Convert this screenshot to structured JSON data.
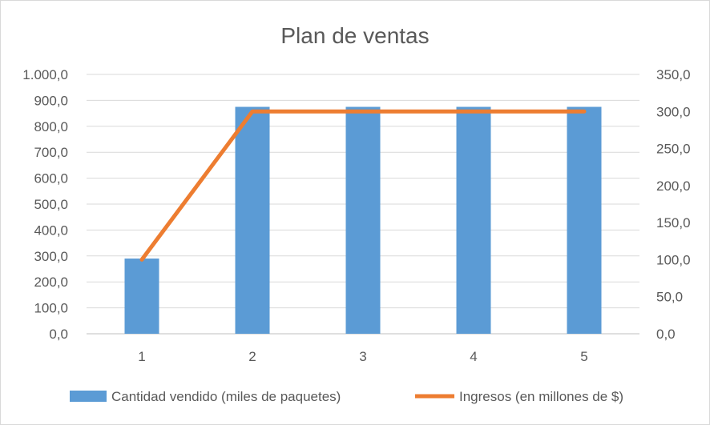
{
  "chart_data": {
    "type": "bar",
    "title": "Plan de ventas",
    "xlabel": "",
    "ylabel": "",
    "y2label": "",
    "categories": [
      "1",
      "2",
      "3",
      "4",
      "5"
    ],
    "y_ticks": [
      "0,0",
      "100,0",
      "200,0",
      "300,0",
      "400,0",
      "500,0",
      "600,0",
      "700,0",
      "800,0",
      "900,0",
      "1.000,0"
    ],
    "y2_ticks": [
      "0,0",
      "50,0",
      "100,0",
      "150,0",
      "200,0",
      "250,0",
      "300,0",
      "350,0"
    ],
    "ylim": [
      0,
      1000
    ],
    "y2lim": [
      0,
      350
    ],
    "grid": true,
    "legend_position": "bottom",
    "series": [
      {
        "name": "Cantidad vendido (miles de paquetes)",
        "type": "bar",
        "axis": "left",
        "color": "#5b9bd5",
        "values": [
          290,
          875,
          875,
          875,
          875
        ]
      },
      {
        "name": "Ingresos (en millones de $)",
        "type": "line",
        "axis": "right",
        "color": "#ed7d31",
        "values": [
          100,
          300,
          300,
          300,
          300
        ]
      }
    ]
  }
}
